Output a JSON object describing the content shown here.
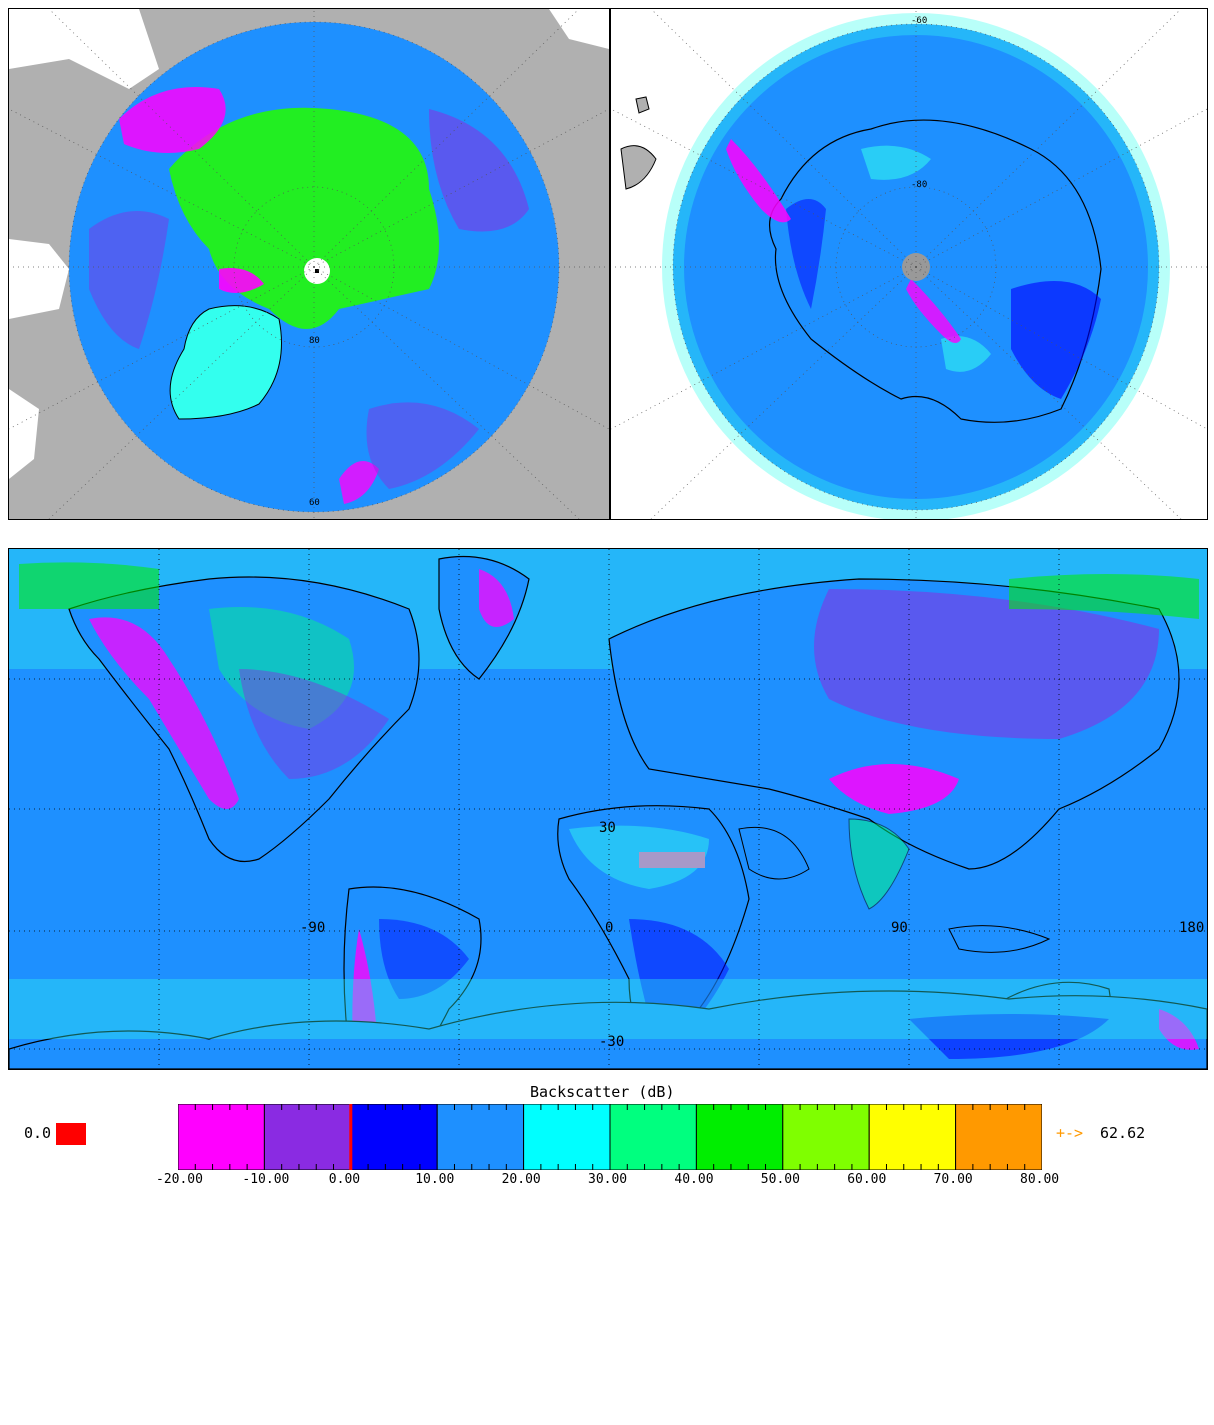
{
  "north_map": {
    "labels": {
      "lat_inner": "80",
      "lat_bottom": "60"
    }
  },
  "south_map": {
    "labels": {
      "lat_top": "-60",
      "lat_inner": "-80"
    }
  },
  "world_map": {
    "labels": {
      "lon_neg90": "-90",
      "lon_0": "0",
      "lon_90": "90",
      "lon_180": "180",
      "lat_30": "30",
      "lat_neg30": "-30"
    }
  },
  "colorbar": {
    "title": "Backscatter (dB)",
    "missing_value_label": "0.0",
    "overflow_arrow": "+->",
    "overflow_value": "62.62",
    "tick_labels": [
      "-20.00",
      "-10.00",
      "0.00",
      "10.00",
      "20.00",
      "30.00",
      "40.00",
      "50.00",
      "60.00",
      "70.00",
      "80.00"
    ],
    "bins": [
      {
        "from": -20,
        "to": -10,
        "color": "#ff00ff"
      },
      {
        "from": -10,
        "to": 0,
        "color": "#8a2be2"
      },
      {
        "from": 0,
        "to": 10,
        "color": "#0000ff"
      },
      {
        "from": 10,
        "to": 20,
        "color": "#1e90ff"
      },
      {
        "from": 20,
        "to": 30,
        "color": "#00ffff"
      },
      {
        "from": 30,
        "to": 40,
        "color": "#00ff7f"
      },
      {
        "from": 40,
        "to": 50,
        "color": "#00ee00"
      },
      {
        "from": 50,
        "to": 60,
        "color": "#7fff00"
      },
      {
        "from": 60,
        "to": 70,
        "color": "#ffff00"
      },
      {
        "from": 70,
        "to": 80,
        "color": "#ff9900"
      }
    ],
    "zero_marker_color": "#ff0000",
    "missing_color": "#ff0000"
  },
  "colors": {
    "ocean": "#1e90ff",
    "land_gray": "#b0b0b0",
    "ice_green": "#22ee22",
    "high_magenta": "#ff00ff",
    "cyan": "#33ffee",
    "blue": "#0000ff",
    "coast": "#000000"
  }
}
